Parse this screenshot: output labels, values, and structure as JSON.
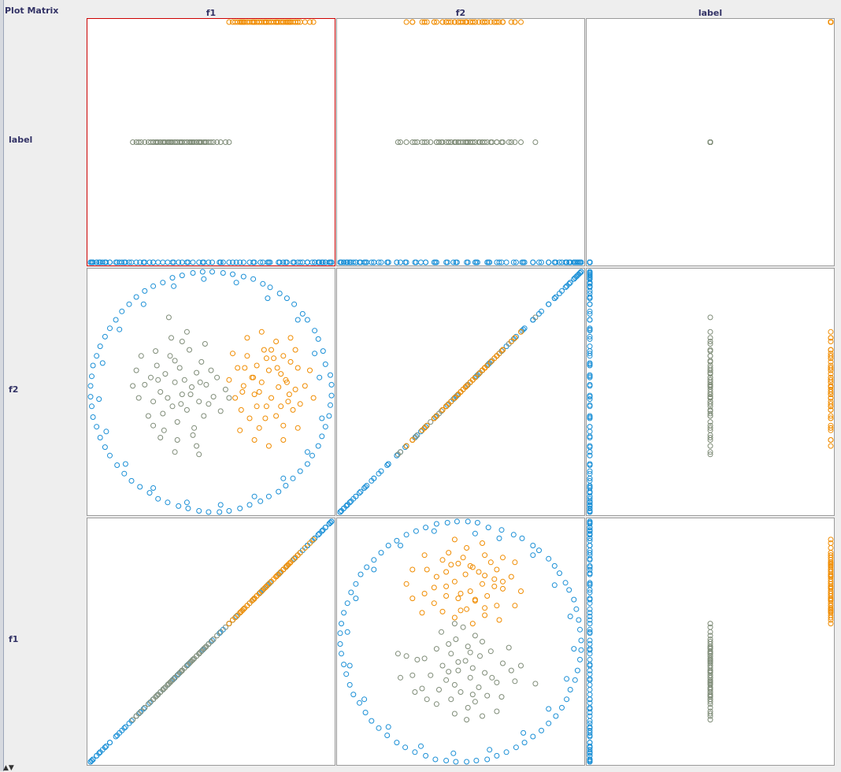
{
  "title": "Plot Matrix",
  "attributes": [
    "label",
    "f2",
    "f1"
  ],
  "column_order": [
    "f1",
    "f2",
    "label"
  ],
  "row_order": [
    "label",
    "f2",
    "f1"
  ],
  "colors": {
    "class_blue": "#1a8fd6",
    "class_gray": "#7f8c78",
    "class_orange": "#f08c00",
    "cell_border": "#9a9a9a",
    "selected_border": "#cc0000",
    "background": "#ffffff"
  },
  "chart_data": {
    "type": "scatter",
    "title": "Plot Matrix",
    "kind": "scatter-plot-matrix",
    "columns": [
      "f1",
      "f2",
      "label"
    ],
    "rows": [
      "label",
      "f2",
      "f1"
    ],
    "ranges": {
      "f1": [
        -1.0,
        1.0
      ],
      "f2": [
        -1.0,
        1.0
      ],
      "label": [
        0,
        2
      ]
    },
    "label_values": {
      "blue": 0,
      "gray": 1,
      "orange": 2
    },
    "selected_cell": {
      "row": "label",
      "column": "f1"
    },
    "classes": [
      {
        "color": "#1a8fd6",
        "label_value": 0,
        "points": [
          [
            0.95,
            0.23
          ],
          [
            0.93,
            0.34
          ],
          [
            0.89,
            0.44
          ],
          [
            0.86,
            0.51
          ],
          [
            0.8,
            0.6
          ],
          [
            0.76,
            0.65
          ],
          [
            0.69,
            0.73
          ],
          [
            0.63,
            0.78
          ],
          [
            0.57,
            0.82
          ],
          [
            0.49,
            0.87
          ],
          [
            0.43,
            0.9
          ],
          [
            0.35,
            0.94
          ],
          [
            0.27,
            0.96
          ],
          [
            0.18,
            0.98
          ],
          [
            0.1,
            0.99
          ],
          [
            0.01,
            1.0
          ],
          [
            -0.07,
            1.0
          ],
          [
            -0.15,
            0.99
          ],
          [
            -0.24,
            0.97
          ],
          [
            -0.32,
            0.95
          ],
          [
            -0.4,
            0.91
          ],
          [
            -0.48,
            0.88
          ],
          [
            -0.55,
            0.84
          ],
          [
            -0.62,
            0.79
          ],
          [
            -0.68,
            0.73
          ],
          [
            -0.74,
            0.67
          ],
          [
            -0.79,
            0.6
          ],
          [
            -0.84,
            0.53
          ],
          [
            -0.88,
            0.46
          ],
          [
            -0.92,
            0.38
          ],
          [
            -0.95,
            0.3
          ],
          [
            -0.98,
            0.22
          ],
          [
            -0.99,
            0.13
          ],
          [
            -1.0,
            0.05
          ],
          [
            -1.0,
            -0.04
          ],
          [
            -0.99,
            -0.12
          ],
          [
            -0.98,
            -0.21
          ],
          [
            -0.95,
            -0.29
          ],
          [
            -0.92,
            -0.38
          ],
          [
            -0.88,
            -0.46
          ],
          [
            -0.84,
            -0.53
          ],
          [
            -0.78,
            -0.61
          ],
          [
            -0.72,
            -0.68
          ],
          [
            -0.66,
            -0.74
          ],
          [
            -0.59,
            -0.79
          ],
          [
            -0.51,
            -0.84
          ],
          [
            -0.44,
            -0.89
          ],
          [
            -0.36,
            -0.92
          ],
          [
            -0.27,
            -0.95
          ],
          [
            -0.19,
            -0.97
          ],
          [
            -0.1,
            -0.99
          ],
          [
            -0.02,
            -1.0
          ],
          [
            0.07,
            -1.0
          ],
          [
            0.15,
            -0.99
          ],
          [
            0.24,
            -0.97
          ],
          [
            0.32,
            -0.94
          ],
          [
            0.41,
            -0.91
          ],
          [
            0.48,
            -0.87
          ],
          [
            0.56,
            -0.83
          ],
          [
            0.62,
            -0.78
          ],
          [
            0.68,
            -0.72
          ],
          [
            0.74,
            -0.66
          ],
          [
            0.8,
            -0.6
          ],
          [
            0.84,
            -0.53
          ],
          [
            0.89,
            -0.45
          ],
          [
            0.92,
            -0.37
          ],
          [
            0.95,
            -0.29
          ],
          [
            0.98,
            -0.2
          ],
          [
            0.99,
            -0.11
          ],
          [
            1.0,
            -0.03
          ],
          [
            1.0,
            0.06
          ],
          [
            0.99,
            0.14
          ],
          [
            0.9,
            0.12
          ],
          [
            0.86,
            0.32
          ],
          [
            0.72,
            0.6
          ],
          [
            0.47,
            0.78
          ],
          [
            0.21,
            0.91
          ],
          [
            -0.06,
            0.94
          ],
          [
            -0.31,
            0.88
          ],
          [
            -0.56,
            0.73
          ],
          [
            -0.76,
            0.52
          ],
          [
            -0.9,
            0.24
          ],
          [
            -0.93,
            -0.06
          ],
          [
            -0.87,
            -0.33
          ],
          [
            -0.71,
            -0.6
          ],
          [
            -0.48,
            -0.8
          ],
          [
            -0.2,
            -0.92
          ],
          [
            0.08,
            -0.94
          ],
          [
            0.36,
            -0.87
          ],
          [
            0.6,
            -0.72
          ],
          [
            0.8,
            -0.5
          ],
          [
            0.92,
            -0.22
          ]
        ]
      },
      {
        "color": "#7f8c78",
        "label_value": 1,
        "points": [
          [
            -0.55,
            0.06
          ],
          [
            -0.5,
            0.12
          ],
          [
            -0.48,
            -0.08
          ],
          [
            -0.45,
            0.22
          ],
          [
            -0.42,
            0.0
          ],
          [
            -0.4,
            -0.18
          ],
          [
            -0.38,
            0.15
          ],
          [
            -0.36,
            -0.05
          ],
          [
            -0.34,
            0.3
          ],
          [
            -0.32,
            -0.12
          ],
          [
            -0.3,
            0.08
          ],
          [
            -0.28,
            -0.25
          ],
          [
            -0.26,
            0.2
          ],
          [
            -0.24,
            -0.02
          ],
          [
            -0.22,
            0.1
          ],
          [
            -0.2,
            -0.15
          ],
          [
            -0.18,
            0.35
          ],
          [
            -0.16,
            0.04
          ],
          [
            -0.14,
            -0.3
          ],
          [
            -0.12,
            0.16
          ],
          [
            -0.1,
            -0.08
          ],
          [
            -0.08,
            0.25
          ],
          [
            -0.06,
            -0.2
          ],
          [
            -0.04,
            0.06
          ],
          [
            -0.02,
            -0.1
          ],
          [
            0.0,
            0.18
          ],
          [
            0.02,
            -0.04
          ],
          [
            0.05,
            0.12
          ],
          [
            0.08,
            -0.16
          ],
          [
            -0.6,
            -0.05
          ],
          [
            -0.62,
            0.18
          ],
          [
            -0.52,
            -0.2
          ],
          [
            -0.46,
            0.34
          ],
          [
            -0.33,
            0.45
          ],
          [
            -0.28,
            -0.4
          ],
          [
            -0.2,
            0.5
          ],
          [
            -0.12,
            -0.45
          ],
          [
            -0.05,
            0.4
          ],
          [
            0.12,
            0.02
          ],
          [
            -0.39,
            -0.32
          ],
          [
            -0.44,
            0.1
          ],
          [
            -0.3,
            0.26
          ],
          [
            -0.25,
            -0.1
          ],
          [
            -0.17,
            -0.02
          ],
          [
            -0.09,
            0.08
          ],
          [
            -0.58,
            0.3
          ],
          [
            -0.35,
            0.62
          ],
          [
            -0.42,
            -0.38
          ],
          [
            -0.1,
            -0.52
          ],
          [
            -0.24,
            0.42
          ],
          [
            -0.15,
            -0.36
          ],
          [
            -0.48,
            -0.28
          ],
          [
            -0.65,
            0.05
          ],
          [
            -0.3,
            -0.5
          ],
          [
            0.15,
            -0.05
          ]
        ]
      },
      {
        "color": "#f08c00",
        "label_value": 2,
        "points": [
          [
            0.15,
            0.1
          ],
          [
            0.2,
            -0.05
          ],
          [
            0.22,
            0.2
          ],
          [
            0.25,
            -0.15
          ],
          [
            0.27,
            0.05
          ],
          [
            0.3,
            0.3
          ],
          [
            0.32,
            -0.22
          ],
          [
            0.34,
            0.12
          ],
          [
            0.36,
            -0.02
          ],
          [
            0.38,
            0.22
          ],
          [
            0.4,
            -0.3
          ],
          [
            0.42,
            0.08
          ],
          [
            0.44,
            0.35
          ],
          [
            0.46,
            -0.12
          ],
          [
            0.48,
            0.18
          ],
          [
            0.5,
            -0.05
          ],
          [
            0.52,
            0.28
          ],
          [
            0.54,
            -0.2
          ],
          [
            0.56,
            0.04
          ],
          [
            0.58,
            0.15
          ],
          [
            0.6,
            -0.28
          ],
          [
            0.62,
            0.1
          ],
          [
            0.64,
            -0.08
          ],
          [
            0.66,
            0.25
          ],
          [
            0.68,
            -0.15
          ],
          [
            0.7,
            0.02
          ],
          [
            0.72,
            0.2
          ],
          [
            0.74,
            -0.1
          ],
          [
            0.78,
            0.05
          ],
          [
            0.82,
            0.18
          ],
          [
            0.85,
            -0.05
          ],
          [
            0.18,
            0.32
          ],
          [
            0.24,
            -0.32
          ],
          [
            0.3,
            0.45
          ],
          [
            0.36,
            -0.4
          ],
          [
            0.42,
            0.5
          ],
          [
            0.48,
            -0.45
          ],
          [
            0.54,
            0.42
          ],
          [
            0.6,
            -0.4
          ],
          [
            0.66,
            0.45
          ],
          [
            0.72,
            -0.3
          ],
          [
            0.35,
            0.12
          ],
          [
            0.45,
            -0.22
          ],
          [
            0.55,
            0.2
          ],
          [
            0.65,
            -0.02
          ],
          [
            0.5,
            0.35
          ],
          [
            0.4,
            0.0
          ],
          [
            0.6,
            0.3
          ],
          [
            0.28,
            0.2
          ],
          [
            0.38,
            -0.12
          ],
          [
            0.58,
            -0.12
          ],
          [
            0.7,
            0.35
          ],
          [
            0.26,
            0.0
          ],
          [
            0.46,
            0.28
          ],
          [
            0.63,
            0.08
          ]
        ]
      }
    ]
  }
}
